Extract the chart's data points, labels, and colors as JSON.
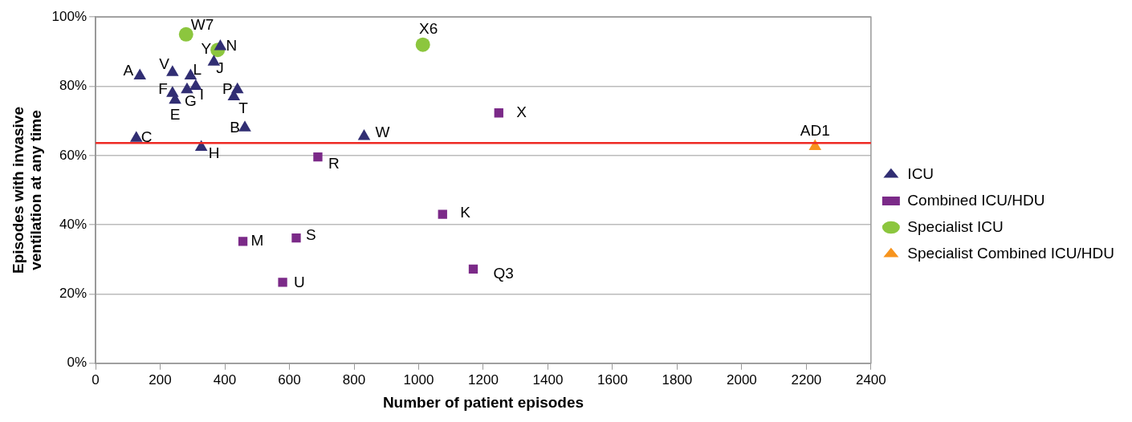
{
  "chart_data": {
    "type": "scatter",
    "xlabel": "Number of patient episodes",
    "ylabel": "Episodes with invasive ventilation at any time",
    "series": [
      {
        "name": "ICU",
        "color": "#312e73",
        "marker": "triangle",
        "x": [
          137,
          238,
          294,
          366,
          386,
          238,
          283,
          310,
          246,
          439,
          428,
          462,
          126,
          327,
          831
        ],
        "values": [
          83,
          84,
          83,
          87,
          91.5,
          78,
          79,
          80,
          76,
          79,
          77,
          68,
          65,
          62.4,
          65.5
        ]
      },
      {
        "name": "Combined ICU/HDU",
        "color": "#7b2a88",
        "marker": "square",
        "x": [
          688,
          456,
          621,
          579,
          1074,
          1169,
          1248
        ],
        "values": [
          59.6,
          35.2,
          36.2,
          23.4,
          43,
          27.2,
          72.3
        ]
      },
      {
        "name": "Specialist ICU",
        "color": "#8cc63e",
        "marker": "circle",
        "x": [
          280,
          378,
          1013
        ],
        "values": [
          95,
          90.5,
          92
        ]
      },
      {
        "name": "Specialist Combined ICU/HDU",
        "color": "#f7941d",
        "marker": "triangle",
        "x": [
          2227
        ],
        "values": [
          62.6
        ]
      }
    ],
    "xlim": [
      0,
      2400
    ],
    "xticks": [
      0,
      200,
      400,
      600,
      800,
      1000,
      1200,
      1400,
      1600,
      1800,
      2000,
      2200,
      2400
    ],
    "ylim": [
      0,
      100
    ],
    "yticks": [
      {
        "value": 0,
        "label": "0%"
      },
      {
        "value": 20,
        "label": "20%"
      },
      {
        "value": 40,
        "label": "40%"
      },
      {
        "value": 60,
        "label": "60%"
      },
      {
        "value": 80,
        "label": "80%"
      },
      {
        "value": 100,
        "label": "100%"
      }
    ],
    "grid": "y",
    "legend": "right",
    "ref_lines": [
      {
        "axis": "y",
        "value": 63.6,
        "color": "#ee2a24"
      }
    ],
    "annotations": [
      {
        "text": "A",
        "x": 137,
        "y": 83
      },
      {
        "text": "V",
        "x": 238,
        "y": 84
      },
      {
        "text": "L",
        "x": 294,
        "y": 83
      },
      {
        "text": "J",
        "x": 366,
        "y": 87
      },
      {
        "text": "N",
        "x": 386,
        "y": 91.5
      },
      {
        "text": "F",
        "x": 238,
        "y": 78
      },
      {
        "text": "G",
        "x": 283,
        "y": 79
      },
      {
        "text": "I",
        "x": 310,
        "y": 80
      },
      {
        "text": "E",
        "x": 246,
        "y": 76
      },
      {
        "text": "P",
        "x": 439,
        "y": 79
      },
      {
        "text": "T",
        "x": 428,
        "y": 77
      },
      {
        "text": "B",
        "x": 462,
        "y": 68
      },
      {
        "text": "C",
        "x": 126,
        "y": 65
      },
      {
        "text": "H",
        "x": 327,
        "y": 62.4
      },
      {
        "text": "W",
        "x": 831,
        "y": 65.5
      },
      {
        "text": "R",
        "x": 688,
        "y": 59.6
      },
      {
        "text": "M",
        "x": 456,
        "y": 35.2
      },
      {
        "text": "S",
        "x": 621,
        "y": 36.2
      },
      {
        "text": "U",
        "x": 579,
        "y": 23.4
      },
      {
        "text": "K",
        "x": 1074,
        "y": 43
      },
      {
        "text": "Q3",
        "x": 1169,
        "y": 27.2
      },
      {
        "text": "X",
        "x": 1248,
        "y": 72.3
      },
      {
        "text": "W7",
        "x": 280,
        "y": 95
      },
      {
        "text": "Y",
        "x": 378,
        "y": 90.5
      },
      {
        "text": "X6",
        "x": 1013,
        "y": 92
      },
      {
        "text": "AD1",
        "x": 2227,
        "y": 62.6
      }
    ]
  }
}
